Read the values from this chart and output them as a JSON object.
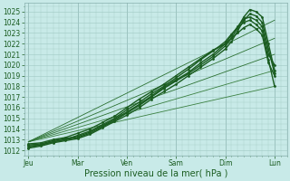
{
  "bg_color": "#c8eae8",
  "plot_bg_color": "#c8eae8",
  "grid_color": "#a0c8c4",
  "ylim": [
    1011.5,
    1025.8
  ],
  "yticks": [
    1012,
    1013,
    1014,
    1015,
    1016,
    1017,
    1018,
    1019,
    1020,
    1021,
    1022,
    1023,
    1024,
    1025
  ],
  "xlabel": "Pression niveau de la mer( hPa )",
  "xtick_labels": [
    "Jeu",
    "Mar",
    "Ven",
    "Sam",
    "Dim",
    "Lun"
  ],
  "xtick_positions": [
    0,
    24,
    48,
    72,
    96,
    120
  ],
  "xlim": [
    -2,
    126
  ],
  "tick_fontsize": 5.5,
  "xlabel_fontsize": 7,
  "figsize": [
    3.2,
    2.0
  ],
  "dpi": 100,
  "line_color": "#1a5c20",
  "line_color_light": "#3a8040",
  "day_vlines": [
    0,
    24,
    48,
    72,
    96,
    120
  ],
  "lines": [
    {
      "x": [
        0,
        6,
        12,
        18,
        24,
        30,
        36,
        42,
        48,
        54,
        60,
        66,
        72,
        78,
        84,
        90,
        96,
        99,
        102,
        105,
        108,
        111,
        114,
        117,
        120
      ],
      "y": [
        1012.3,
        1012.5,
        1012.8,
        1013.0,
        1013.2,
        1013.6,
        1014.2,
        1014.8,
        1015.5,
        1016.2,
        1017.0,
        1017.8,
        1018.5,
        1019.2,
        1020.0,
        1020.8,
        1021.8,
        1022.5,
        1023.5,
        1024.5,
        1025.2,
        1025.0,
        1024.5,
        1022.0,
        1019.5
      ],
      "lw": 1.0,
      "marker": ".",
      "ms": 2.0,
      "color": "#1a5c20",
      "zorder": 5
    },
    {
      "x": [
        0,
        6,
        12,
        18,
        24,
        30,
        36,
        42,
        48,
        54,
        60,
        66,
        72,
        78,
        84,
        90,
        96,
        99,
        102,
        105,
        108,
        111,
        114,
        117,
        120
      ],
      "y": [
        1012.2,
        1012.4,
        1012.7,
        1012.9,
        1013.1,
        1013.5,
        1014.1,
        1014.7,
        1015.3,
        1016.0,
        1016.8,
        1017.5,
        1018.2,
        1019.0,
        1019.8,
        1020.6,
        1021.5,
        1022.2,
        1023.2,
        1024.2,
        1024.8,
        1024.6,
        1024.0,
        1021.5,
        1019.2
      ],
      "lw": 1.0,
      "marker": ".",
      "ms": 2.0,
      "color": "#1a5c20",
      "zorder": 5
    },
    {
      "x": [
        0,
        6,
        12,
        18,
        24,
        30,
        36,
        42,
        48,
        54,
        60,
        66,
        72,
        78,
        84,
        90,
        96,
        99,
        102,
        105,
        108,
        111,
        114,
        117,
        120
      ],
      "y": [
        1012.5,
        1012.6,
        1012.9,
        1013.1,
        1013.3,
        1013.7,
        1014.3,
        1014.9,
        1015.6,
        1016.3,
        1017.1,
        1017.9,
        1018.6,
        1019.3,
        1020.2,
        1021.0,
        1022.0,
        1022.8,
        1023.6,
        1024.3,
        1024.5,
        1024.2,
        1023.6,
        1021.0,
        1020.0
      ],
      "lw": 1.0,
      "marker": ".",
      "ms": 2.0,
      "color": "#1a5c20",
      "zorder": 5
    },
    {
      "x": [
        0,
        6,
        12,
        18,
        24,
        30,
        36,
        42,
        48,
        54,
        60,
        66,
        72,
        78,
        84,
        90,
        96,
        99,
        102,
        105,
        108,
        111,
        114,
        117,
        120
      ],
      "y": [
        1012.4,
        1012.5,
        1012.8,
        1013.0,
        1013.4,
        1013.8,
        1014.4,
        1015.0,
        1015.8,
        1016.5,
        1017.3,
        1018.0,
        1018.8,
        1019.6,
        1020.5,
        1021.3,
        1022.2,
        1022.9,
        1023.5,
        1024.0,
        1024.2,
        1023.8,
        1023.2,
        1020.5,
        1018.0
      ],
      "lw": 1.0,
      "marker": ".",
      "ms": 2.0,
      "color": "#1a5c20",
      "zorder": 5
    },
    {
      "x": [
        0,
        6,
        12,
        18,
        24,
        30,
        36,
        42,
        48,
        54,
        60,
        66,
        72,
        78,
        84,
        90,
        96,
        99,
        102,
        105,
        108,
        111,
        114,
        117,
        120
      ],
      "y": [
        1012.6,
        1012.7,
        1013.0,
        1013.2,
        1013.6,
        1014.0,
        1014.6,
        1015.2,
        1016.0,
        1016.8,
        1017.5,
        1018.2,
        1019.0,
        1019.8,
        1020.6,
        1021.4,
        1022.0,
        1022.5,
        1023.0,
        1023.5,
        1023.8,
        1023.4,
        1022.8,
        1020.2,
        1019.0
      ],
      "lw": 1.0,
      "marker": ".",
      "ms": 2.0,
      "color": "#1a5c20",
      "zorder": 4
    },
    {
      "x": [
        0,
        120
      ],
      "y": [
        1012.8,
        1024.2
      ],
      "lw": 0.6,
      "marker": "",
      "ms": 0,
      "color": "#2a7030",
      "zorder": 3
    },
    {
      "x": [
        0,
        120
      ],
      "y": [
        1012.8,
        1022.5
      ],
      "lw": 0.6,
      "marker": "",
      "ms": 0,
      "color": "#2a7030",
      "zorder": 3
    },
    {
      "x": [
        0,
        120
      ],
      "y": [
        1012.8,
        1021.0
      ],
      "lw": 0.6,
      "marker": "",
      "ms": 0,
      "color": "#2a7030",
      "zorder": 3
    },
    {
      "x": [
        0,
        120
      ],
      "y": [
        1012.8,
        1019.5
      ],
      "lw": 0.6,
      "marker": "",
      "ms": 0,
      "color": "#3a8040",
      "zorder": 2
    },
    {
      "x": [
        0,
        120
      ],
      "y": [
        1012.8,
        1018.0
      ],
      "lw": 0.6,
      "marker": "",
      "ms": 0,
      "color": "#3a8040",
      "zorder": 2
    }
  ]
}
